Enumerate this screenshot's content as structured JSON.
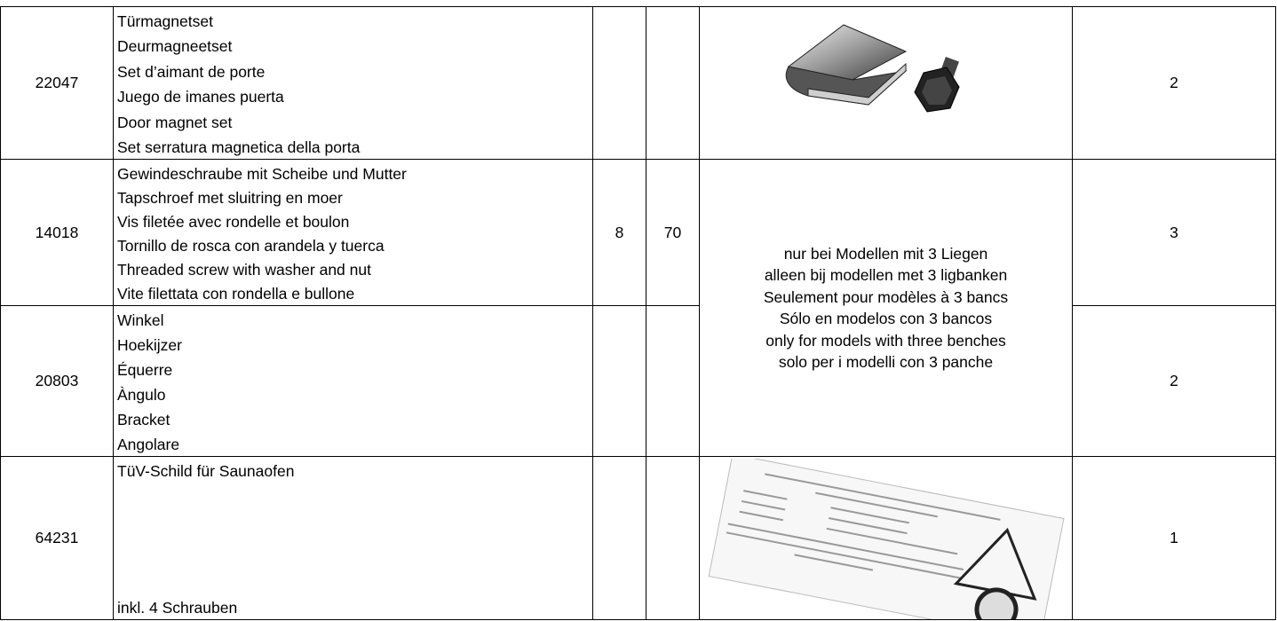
{
  "table": {
    "rows": [
      {
        "part": "22047",
        "description": [
          "Türmagnetset",
          "Deurmagneetset",
          "Set d’aimant de porte",
          "Juego de imanes puerta",
          "Door magnet set",
          "Set serratura magnetica della porta"
        ],
        "quantity": "2"
      },
      {
        "part": "14018",
        "description": [
          "Gewindeschraube mit Scheibe und Mutter",
          "Tapschroef met sluitring en moer",
          "Vis filetée avec rondelle et boulon",
          "Tornillo de rosca con arandela y tuerca",
          "Threaded screw with washer and nut",
          "Vite filettata con rondella e bullone"
        ],
        "diameter": "8",
        "length": "70",
        "quantity": "3"
      },
      {
        "part": "20803",
        "description": [
          "Winkel",
          "Hoekijzer",
          "Équerre",
          "Àngulo",
          "Bracket",
          "Angolare"
        ],
        "quantity": "2"
      },
      {
        "part": "64231",
        "description": [
          "TüV-Schild für Saunaofen",
          "inkl. 4 Schrauben"
        ],
        "quantity": "1"
      }
    ],
    "note": [
      "nur bei Modellen mit 3 Liegen",
      "alleen bij modellen met 3 ligbanken",
      "Seulement pour modèles à 3 bancs",
      "Sólo en modelos con 3 bancos",
      "only for models with three benches",
      "solo per i modelli con 3 panche"
    ]
  }
}
